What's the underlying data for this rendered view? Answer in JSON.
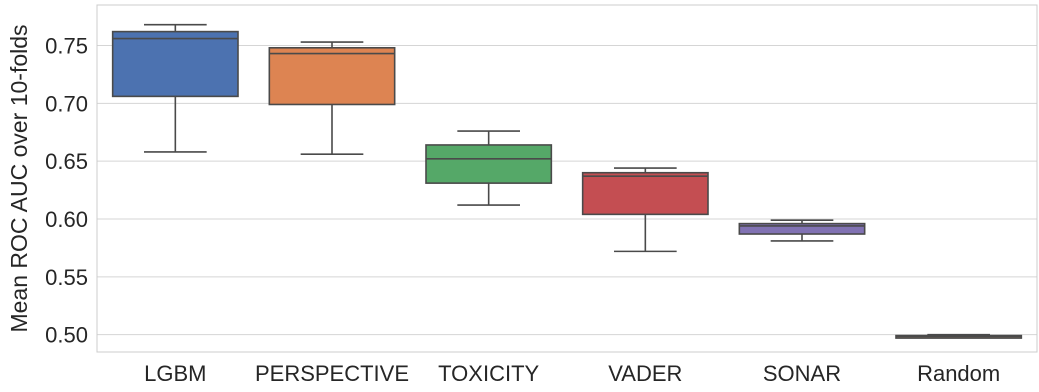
{
  "chart_data": {
    "type": "box",
    "title": "",
    "xlabel": "",
    "ylabel": "Mean ROC AUC over 10-folds",
    "ylim": [
      0.485,
      0.785
    ],
    "yticks": [
      0.5,
      0.55,
      0.6,
      0.65,
      0.7,
      0.75
    ],
    "ytick_labels": [
      "0.50",
      "0.55",
      "0.60",
      "0.65",
      "0.70",
      "0.75"
    ],
    "grid": "horizontal",
    "categories": [
      "LGBM",
      "PERSPECTIVE",
      "TOXICITY",
      "VADER",
      "SONAR",
      "Random"
    ],
    "series": [
      {
        "category": "LGBM",
        "color": "#4c72b0",
        "whisker_low": 0.658,
        "q1": 0.706,
        "median": 0.756,
        "q3": 0.762,
        "whisker_high": 0.768
      },
      {
        "category": "PERSPECTIVE",
        "color": "#dd8452",
        "whisker_low": 0.656,
        "q1": 0.699,
        "median": 0.743,
        "q3": 0.748,
        "whisker_high": 0.753
      },
      {
        "category": "TOXICITY",
        "color": "#55a868",
        "whisker_low": 0.612,
        "q1": 0.631,
        "median": 0.652,
        "q3": 0.664,
        "whisker_high": 0.676
      },
      {
        "category": "VADER",
        "color": "#c44e52",
        "whisker_low": 0.572,
        "q1": 0.604,
        "median": 0.637,
        "q3": 0.64,
        "whisker_high": 0.644
      },
      {
        "category": "SONAR",
        "color": "#8172b3",
        "whisker_low": 0.581,
        "q1": 0.587,
        "median": 0.594,
        "q3": 0.596,
        "whisker_high": 0.599
      },
      {
        "category": "Random",
        "color": "#937860",
        "whisker_low": 0.4975,
        "q1": 0.498,
        "median": 0.4985,
        "q3": 0.4992,
        "whisker_high": 0.5
      }
    ]
  }
}
